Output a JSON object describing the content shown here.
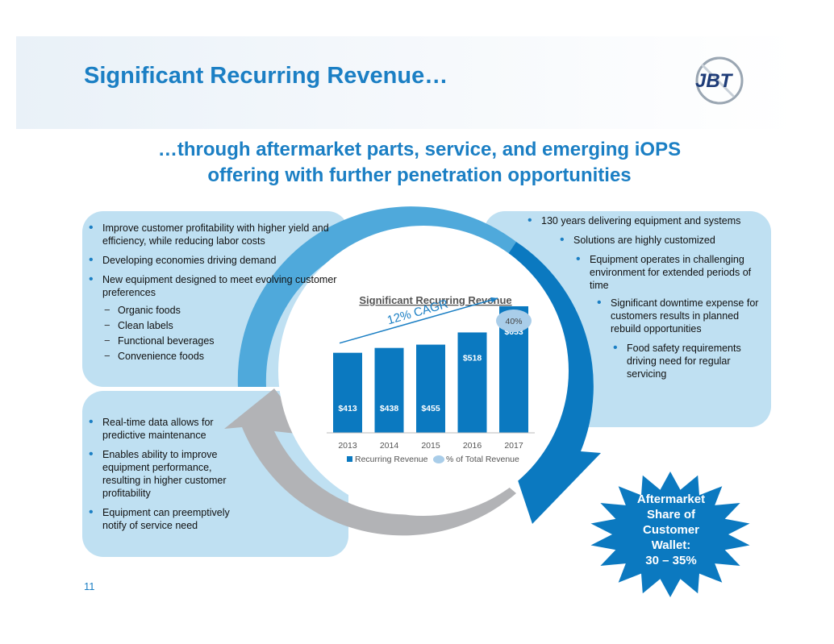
{
  "header": {
    "title": "Significant Recurring Revenue…",
    "subtitle_line1": "…through aftermarket parts, service, and emerging iOPS",
    "subtitle_line2": "offering with further penetration opportunities",
    "logo_text": "JBT"
  },
  "left_top": {
    "bullets": [
      "Improve customer profitability with higher yield and efficiency, while reducing labor costs",
      "Developing economies driving demand",
      "New equipment designed to meet evolving customer preferences"
    ],
    "sub_items": [
      "Organic foods",
      "Clean labels",
      "Functional beverages",
      "Convenience foods"
    ]
  },
  "left_bottom": {
    "bullets": [
      "Real-time data allows for predictive maintenance",
      "Enables ability to improve equipment performance, resulting in higher customer profitability",
      "Equipment can preemptively notify of service need"
    ]
  },
  "right": {
    "bullets": [
      "130 years delivering equipment and systems",
      "Solutions are highly customized",
      "Equipment operates in challenging environment for extended periods of time",
      "Significant downtime expense for customers results in planned rebuild opportunities",
      "Food safety requirements driving need for regular servicing"
    ]
  },
  "burst": {
    "lines": [
      "Aftermarket",
      "Share of",
      "Customer",
      "Wallet:",
      "30 – 35%"
    ]
  },
  "page_number": "11",
  "colors": {
    "brand_blue": "#1b7fc4",
    "bar_blue": "#0b79c0",
    "panel": "#bfe0f2",
    "ring_gray": "#b2b3b6",
    "pct_bubble": "#a9cde9"
  },
  "chart_data": {
    "type": "bar",
    "title": "Significant Recurring Revenue",
    "categories": [
      "2013",
      "2014",
      "2015",
      "2016",
      "2017"
    ],
    "series": [
      {
        "name": "Recurring Revenue",
        "values": [
          413,
          438,
          455,
          518,
          653
        ],
        "labels": [
          "$413",
          "$438",
          "$455",
          "$518",
          "$653"
        ]
      }
    ],
    "pct_series_name": "% of Total Revenue",
    "pct_annotation": {
      "category": "2017",
      "label": "40%"
    },
    "cagr_label": "12% CAGR",
    "ylim": [
      0,
      750
    ],
    "legend": "bottom"
  }
}
